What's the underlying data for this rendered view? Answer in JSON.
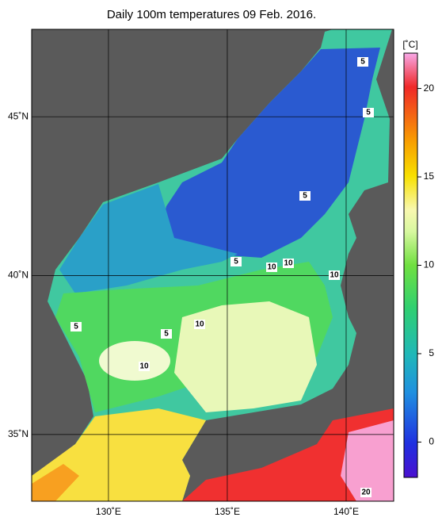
{
  "title": "Daily 100m temperatures 09 Feb. 2016.",
  "map": {
    "xlim": [
      126.77,
      142
    ],
    "ylim": [
      32.9,
      47.75
    ],
    "xticks": [
      {
        "value": 130,
        "label": "130˚E"
      },
      {
        "value": 135,
        "label": "135˚E"
      },
      {
        "value": 140,
        "label": "140˚E"
      }
    ],
    "yticks": [
      {
        "value": 35,
        "label": "35˚N"
      },
      {
        "value": 40,
        "label": "40˚N"
      },
      {
        "value": 45,
        "label": "45˚N"
      }
    ],
    "contour_labels": [
      "5",
      "5",
      "5",
      "5",
      "10",
      "10",
      "10",
      "5",
      "5",
      "10",
      "10",
      "20"
    ]
  },
  "colorbar": {
    "unit": "[˚C]",
    "range": [
      -2,
      22
    ],
    "ticks": [
      0,
      5,
      10,
      15,
      20
    ]
  }
}
